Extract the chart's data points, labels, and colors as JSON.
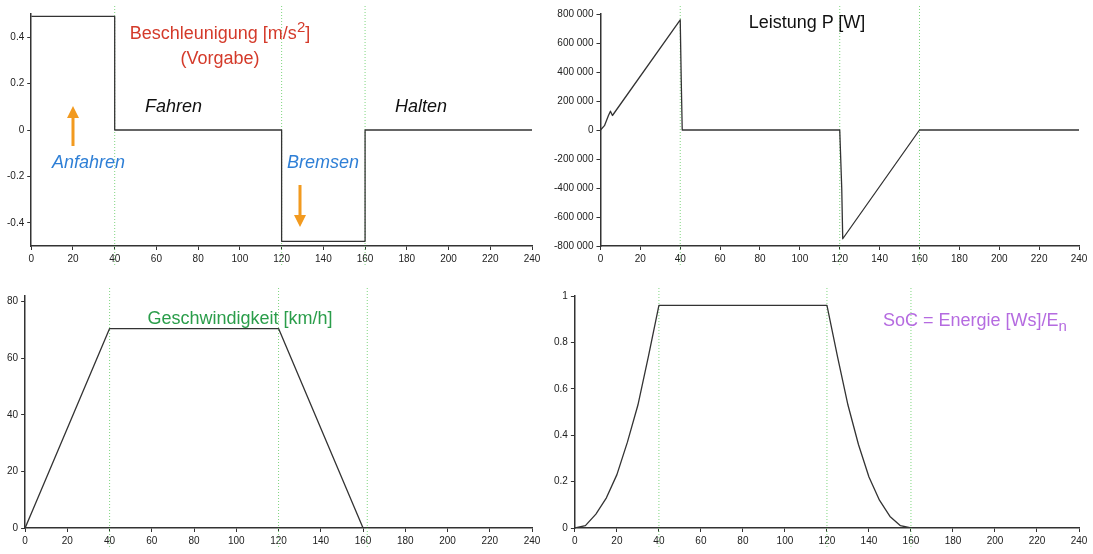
{
  "chart_data": [
    {
      "type": "line",
      "title": "Beschleunigung [m/s$^{2}$]",
      "subtitle": "(Vorgabe)",
      "annotations": [
        "Fahren",
        "Halten",
        "Anfahren",
        "Bremsen"
      ],
      "marker": "none",
      "line_style": "solid",
      "series": [
        {
          "color": "#333333",
          "x": [
            0,
            40,
            40,
            120,
            120,
            160,
            160,
            240
          ],
          "values": [
            0.49,
            0.49,
            0,
            0,
            -0.48,
            -0.48,
            0,
            0
          ]
        }
      ],
      "xlim": [
        0,
        240
      ],
      "xticks": [
        0,
        20,
        40,
        60,
        80,
        100,
        120,
        140,
        160,
        180,
        200,
        220,
        240
      ],
      "ylim": [
        -0.5,
        0.5
      ],
      "yticks": [
        -0.4,
        -0.2,
        0,
        0.2,
        0.4
      ],
      "ref_lines": [
        {
          "axis": "x",
          "value": 40,
          "color": "#7fd67f",
          "line_style": "dotted"
        },
        {
          "axis": "x",
          "value": 120,
          "color": "#7fd67f",
          "line_style": "dotted"
        },
        {
          "axis": "x",
          "value": 160,
          "color": "#7fd67f",
          "line_style": "dotted"
        }
      ]
    },
    {
      "type": "line",
      "title": "Leistung P [W]",
      "marker": "none",
      "line_style": "solid",
      "series": [
        {
          "color": "#333333",
          "x": [
            0,
            2,
            4,
            5,
            6,
            40,
            40.5,
            41,
            120,
            121,
            121.5,
            160,
            240
          ],
          "values": [
            0,
            30000,
            100000,
            130000,
            100000,
            760000,
            350000,
            0,
            0,
            -400000,
            -750000,
            0,
            0
          ]
        }
      ],
      "xlim": [
        0,
        240
      ],
      "xticks": [
        0,
        20,
        40,
        60,
        80,
        100,
        120,
        140,
        160,
        180,
        200,
        220,
        240
      ],
      "ylim": [
        -800000,
        800000
      ],
      "yticks": [
        {
          "value": -800000,
          "label": "-800 000"
        },
        {
          "value": -600000,
          "label": "-600 000"
        },
        {
          "value": -400000,
          "label": "-400 000"
        },
        {
          "value": -200000,
          "label": "-200 000"
        },
        0,
        {
          "value": 200000,
          "label": "200 000"
        },
        {
          "value": 400000,
          "label": "400 000"
        },
        {
          "value": 600000,
          "label": "600 000"
        },
        {
          "value": 800000,
          "label": "800 000"
        }
      ],
      "ref_lines": [
        {
          "axis": "x",
          "value": 40,
          "color": "#7fd67f",
          "line_style": "dotted"
        },
        {
          "axis": "x",
          "value": 120,
          "color": "#7fd67f",
          "line_style": "dotted"
        },
        {
          "axis": "x",
          "value": 160,
          "color": "#7fd67f",
          "line_style": "dotted"
        }
      ]
    },
    {
      "type": "line",
      "title": "Geschwindigkeit [km/h]",
      "marker": "none",
      "line_style": "solid",
      "series": [
        {
          "color": "#333333",
          "x": [
            0,
            40,
            120,
            160,
            240
          ],
          "values": [
            0,
            70.5,
            70.5,
            0,
            0
          ]
        }
      ],
      "xlim": [
        0,
        240
      ],
      "xticks": [
        0,
        20,
        40,
        60,
        80,
        100,
        120,
        140,
        160,
        180,
        200,
        220,
        240
      ],
      "ylim": [
        0,
        82
      ],
      "yticks": [
        0,
        20,
        40,
        60,
        80
      ],
      "ref_lines": [
        {
          "axis": "x",
          "value": 40,
          "color": "#7fd67f",
          "line_style": "dotted"
        },
        {
          "axis": "x",
          "value": 120,
          "color": "#7fd67f",
          "line_style": "dotted"
        },
        {
          "axis": "x",
          "value": 162,
          "color": "#7fd67f",
          "line_style": "dotted"
        }
      ]
    },
    {
      "type": "line",
      "title": "SoC = Energie [Ws]/E$_{n}$",
      "marker": "none",
      "line_style": "solid",
      "series": [
        {
          "color": "#333333",
          "x": [
            0,
            5,
            10,
            15,
            20,
            25,
            30,
            35,
            40,
            120,
            125,
            130,
            135,
            140,
            145,
            150,
            155,
            160,
            240
          ],
          "values": [
            0,
            0.01,
            0.06,
            0.13,
            0.23,
            0.37,
            0.53,
            0.74,
            0.96,
            0.96,
            0.74,
            0.53,
            0.36,
            0.22,
            0.12,
            0.05,
            0.01,
            0,
            0
          ]
        }
      ],
      "xlim": [
        0,
        240
      ],
      "xticks": [
        0,
        20,
        40,
        60,
        80,
        100,
        120,
        140,
        160,
        180,
        200,
        220,
        240
      ],
      "ylim": [
        0,
        1
      ],
      "yticks": [
        0,
        0.2,
        0.4,
        0.6,
        0.8,
        1
      ],
      "ref_lines": [
        {
          "axis": "x",
          "value": 40,
          "color": "#7fd67f",
          "line_style": "dotted"
        },
        {
          "axis": "x",
          "value": 120,
          "color": "#7fd67f",
          "line_style": "dotted"
        },
        {
          "axis": "x",
          "value": 160,
          "color": "#7fd67f",
          "line_style": "dotted"
        }
      ]
    }
  ]
}
